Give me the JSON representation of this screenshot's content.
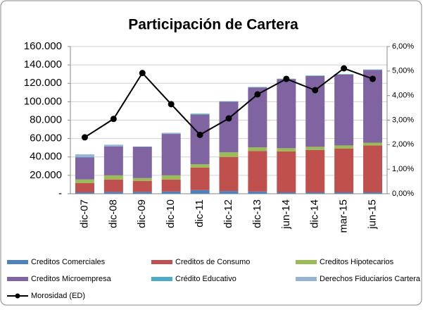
{
  "chart_data": {
    "type": "bar",
    "stacked": true,
    "title": "Participación de Cartera",
    "categories": [
      "dic-07",
      "dic-08",
      "dic-09",
      "dic-10",
      "dic-11",
      "dic-12",
      "dic-13",
      "jun-14",
      "dic-14",
      "mar-15",
      "jun-15"
    ],
    "series": [
      {
        "name": "Creditos Comerciales",
        "color": "#4f81bd",
        "values": [
          1500,
          2000,
          2000,
          2500,
          4000,
          3000,
          2500,
          1500,
          1500,
          1500,
          1500
        ]
      },
      {
        "name": "Creditos de Consumo",
        "color": "#c0504d",
        "values": [
          10000,
          13500,
          12000,
          13000,
          24500,
          37000,
          44000,
          44500,
          46000,
          47500,
          51000
        ]
      },
      {
        "name": "Creditos Hipotecarios",
        "color": "#9bbb59",
        "values": [
          4000,
          4500,
          3000,
          4500,
          3500,
          5000,
          4000,
          3500,
          3500,
          3500,
          3000
        ]
      },
      {
        "name": "Creditos Microempresa",
        "color": "#8064a2",
        "values": [
          24000,
          31500,
          34000,
          45000,
          54000,
          55000,
          65000,
          75000,
          77000,
          77000,
          79000
        ]
      },
      {
        "name": "Crédito Educativo",
        "color": "#4bacc6",
        "values": [
          300,
          300,
          300,
          300,
          1000,
          500,
          500,
          500,
          500,
          500,
          500
        ]
      },
      {
        "name": "Derechos Fiduciarios Cartera",
        "color": "#95b3d7",
        "values": [
          3000,
          1500,
          0,
          1000,
          0,
          0,
          0,
          0,
          0,
          0,
          0
        ]
      },
      {
        "name": "Morosidad (ED)",
        "color": "#000000",
        "axis": "y2",
        "type": "line",
        "values": [
          2.3,
          3.05,
          4.92,
          3.65,
          2.4,
          3.07,
          4.05,
          4.68,
          4.22,
          5.11,
          4.68
        ]
      }
    ],
    "ylim": [
      0,
      160000
    ],
    "yticks": [
      {
        "value": 0,
        "label": "-"
      },
      {
        "value": 20000,
        "label": "20.000"
      },
      {
        "value": 40000,
        "label": "40.000"
      },
      {
        "value": 60000,
        "label": "60.000"
      },
      {
        "value": 80000,
        "label": "80.000"
      },
      {
        "value": 100000,
        "label": "100.000"
      },
      {
        "value": 120000,
        "label": "120.000"
      },
      {
        "value": 140000,
        "label": "140.000"
      },
      {
        "value": 160000,
        "label": "160.000"
      }
    ],
    "y2lim": [
      0,
      6
    ],
    "y2ticks": [
      {
        "value": 0,
        "label": "0,00%"
      },
      {
        "value": 1,
        "label": "1,00%"
      },
      {
        "value": 2,
        "label": "2,00%"
      },
      {
        "value": 3,
        "label": "3,00%"
      },
      {
        "value": 4,
        "label": "4,00%"
      },
      {
        "value": 5,
        "label": "5,00%"
      },
      {
        "value": 6,
        "label": "6,00%"
      }
    ],
    "grid": true
  }
}
